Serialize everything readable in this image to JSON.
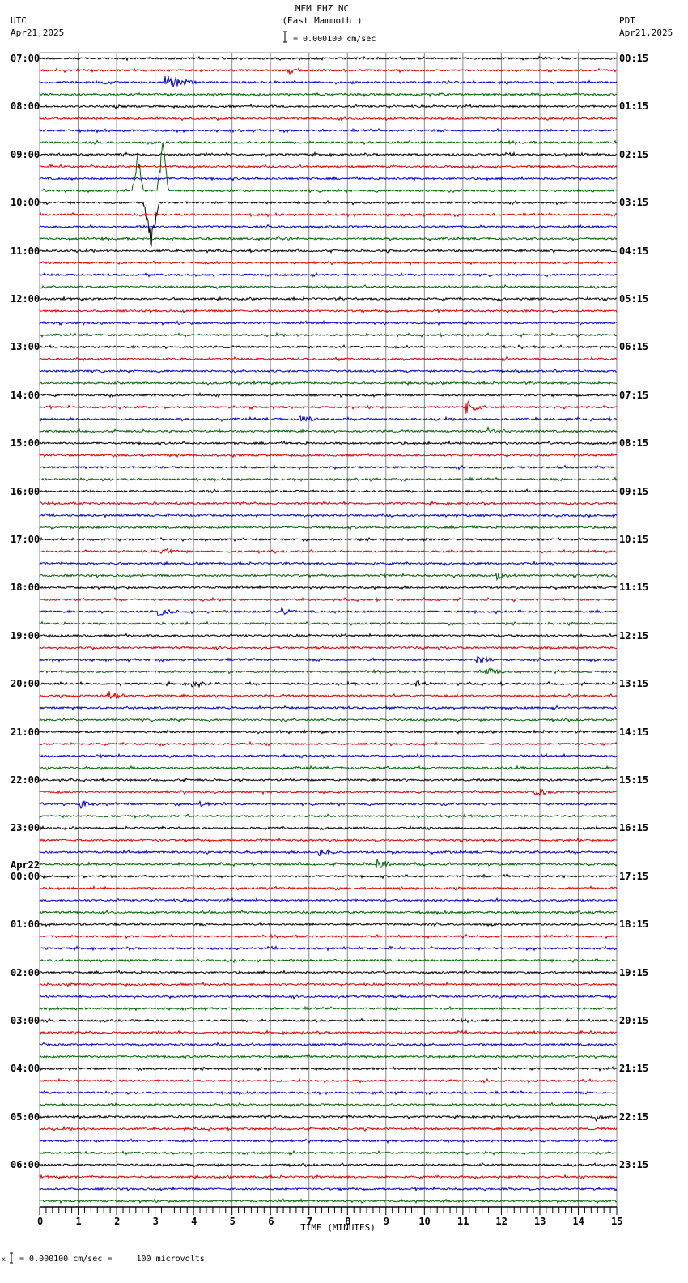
{
  "header": {
    "station": "MEM EHZ NC",
    "location": "(East Mammoth )",
    "scale_text": "= 0.000100 cm/sec",
    "left_tz": "UTC",
    "left_date": "Apr21,2025",
    "right_tz": "PDT",
    "right_date": "Apr21,2025"
  },
  "footer": {
    "scale_text": "= 0.000100 cm/sec =     100 microvolts",
    "prefix": "x"
  },
  "chart_data": {
    "type": "line",
    "title": "MEM EHZ NC (East Mammoth )",
    "subtitle": "helicorder / seismogram, 15-minute lines",
    "xlabel": "TIME (MINUTES)",
    "ylabel": "",
    "xlim": [
      0,
      15
    ],
    "x_ticks": [
      0,
      1,
      2,
      3,
      4,
      5,
      6,
      7,
      8,
      9,
      10,
      11,
      12,
      13,
      14,
      15
    ],
    "minor_ticks_per_minute": 6,
    "grid": true,
    "trace_colors": [
      "#000000",
      "#e00000",
      "#0000c8",
      "#006400"
    ],
    "traces_per_hour": 4,
    "left_labels": [
      "07:00",
      "08:00",
      "09:00",
      "10:00",
      "11:00",
      "12:00",
      "13:00",
      "14:00",
      "15:00",
      "16:00",
      "17:00",
      "18:00",
      "19:00",
      "20:00",
      "21:00",
      "22:00",
      "23:00",
      "00:00",
      "01:00",
      "02:00",
      "03:00",
      "04:00",
      "05:00",
      "06:00"
    ],
    "left_date_change": {
      "index": 17,
      "label": "Apr22"
    },
    "right_labels": [
      "00:15",
      "01:15",
      "02:15",
      "03:15",
      "04:15",
      "05:15",
      "06:15",
      "07:15",
      "08:15",
      "09:15",
      "10:15",
      "11:15",
      "12:15",
      "13:15",
      "14:15",
      "15:15",
      "16:15",
      "17:15",
      "18:15",
      "19:15",
      "20:15",
      "21:15",
      "22:15",
      "23:15"
    ],
    "events": [
      {
        "line": 2,
        "minute": 3.3,
        "amp": 10,
        "dur": 0.8,
        "desc": "local event blue trace 07:30"
      },
      {
        "line": 1,
        "minute": 6.5,
        "amp": 3,
        "dur": 0.4
      },
      {
        "line": 11,
        "minute": 2.55,
        "amp": -45,
        "dur": 0.15,
        "desc": "large spike green 09:45"
      },
      {
        "line": 11,
        "minute": 3.2,
        "amp": -60,
        "dur": 0.15,
        "desc": "large spike green 09:45"
      },
      {
        "line": 12,
        "minute": 2.9,
        "amp": 55,
        "dur": 0.2,
        "desc": "large spike"
      },
      {
        "line": 15,
        "minute": 6.2,
        "amp": 3,
        "dur": 0.6
      },
      {
        "line": 29,
        "minute": 11.1,
        "amp": 9,
        "dur": 0.5,
        "desc": "event red 14:15"
      },
      {
        "line": 30,
        "minute": 6.8,
        "amp": 4,
        "dur": 0.5
      },
      {
        "line": 31,
        "minute": 11.7,
        "amp": 5,
        "dur": 0.6
      },
      {
        "line": 41,
        "minute": 3.2,
        "amp": 5,
        "dur": 0.6
      },
      {
        "line": 43,
        "minute": 11.9,
        "amp": 5,
        "dur": 0.5
      },
      {
        "line": 46,
        "minute": 3.1,
        "amp": 5,
        "dur": 0.5
      },
      {
        "line": 46,
        "minute": 6.3,
        "amp": 5,
        "dur": 0.5
      },
      {
        "line": 50,
        "minute": 11.4,
        "amp": 5,
        "dur": 0.5
      },
      {
        "line": 51,
        "minute": 11.6,
        "amp": 6,
        "dur": 0.5
      },
      {
        "line": 52,
        "minute": 4.0,
        "amp": 5,
        "dur": 0.6
      },
      {
        "line": 52,
        "minute": 9.8,
        "amp": 4,
        "dur": 0.5
      },
      {
        "line": 53,
        "minute": 1.8,
        "amp": 7,
        "dur": 0.5
      },
      {
        "line": 61,
        "minute": 12.9,
        "amp": 6,
        "dur": 0.6
      },
      {
        "line": 62,
        "minute": 4.2,
        "amp": 5,
        "dur": 0.4
      },
      {
        "line": 62,
        "minute": 1.1,
        "amp": 5,
        "dur": 0.4
      },
      {
        "line": 66,
        "minute": 7.3,
        "amp": 5,
        "dur": 0.5
      },
      {
        "line": 67,
        "minute": 8.8,
        "amp": 6,
        "dur": 0.5
      },
      {
        "line": 88,
        "minute": 14.5,
        "amp": 8,
        "dur": 0.3
      }
    ],
    "rows": 96
  }
}
